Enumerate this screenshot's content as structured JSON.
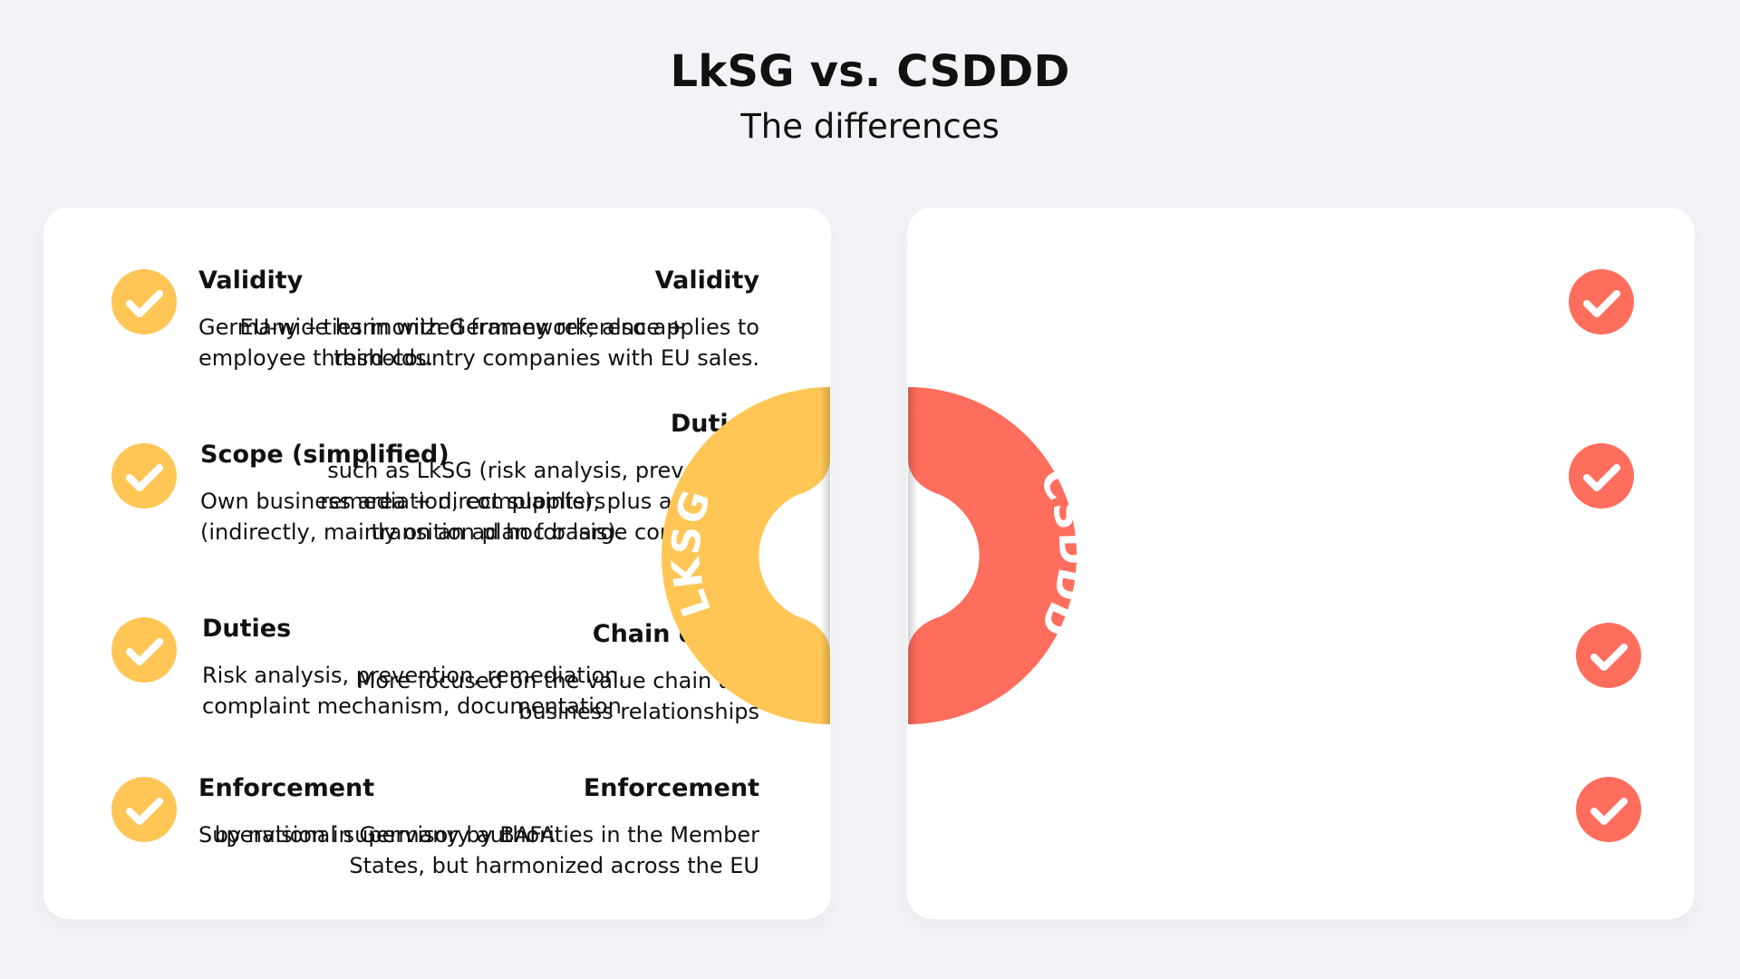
{
  "title": "LkSG vs. CSDDD",
  "subtitle": "The differences",
  "colors": {
    "lksg": "#ffc656",
    "csddd": "#ff6d5d",
    "background": "#f3f3f7",
    "card": "#ffffff"
  },
  "lksg": {
    "label": "LKSG",
    "items": [
      {
        "title": "Validity",
        "text": "Germany – ties in with Germany reference + employee thresholds."
      },
      {
        "title": "Scope (simplified)",
        "text": "Own business area + direct suppliers (indirectly, mainly on an ad hoc basis)."
      },
      {
        "title": "Duties",
        "text": "Risk analysis, prevention, remediation, complaint mechanism, documentation"
      },
      {
        "title": "Enforcement",
        "text": "Supervision in Germany by BAFA"
      }
    ]
  },
  "csddd": {
    "label": "CSDDD",
    "items": [
      {
        "title": "Validity",
        "text": "EU-wide harmonized framework; also applies to third-country companies with EU sales."
      },
      {
        "title": "Duties",
        "text": "such as LkSG (risk analysis, prevention, remediation, complaints), plus a climate transition plan for large companies."
      },
      {
        "title": "Chain depth",
        "text": "More focused on the value chain and business relationships"
      },
      {
        "title": "Enforcement",
        "text": "by national supervisory authorities in the Member States, but harmonized across the EU"
      }
    ]
  },
  "icons": {
    "check": "checkmark-icon"
  }
}
